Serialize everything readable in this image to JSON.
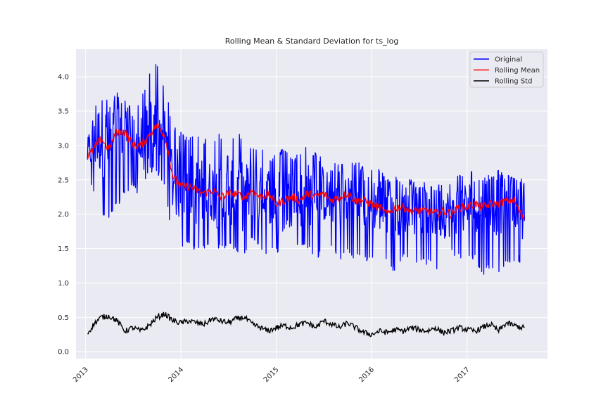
{
  "chart_data": {
    "type": "line",
    "title": "Rolling Mean & Standard Deviation for ts_log",
    "xlabel": "",
    "ylabel": "",
    "x_range": [
      "2012-11-25",
      "2017-11-05"
    ],
    "ylim": [
      -0.1,
      4.4
    ],
    "y_ticks": [
      0.0,
      0.5,
      1.0,
      1.5,
      2.0,
      2.5,
      3.0,
      3.5,
      4.0
    ],
    "y_tick_labels": [
      "0.0",
      "0.5",
      "1.0",
      "1.5",
      "2.0",
      "2.5",
      "3.0",
      "3.5",
      "4.0"
    ],
    "x_ticks": [
      "2013-01-01",
      "2014-01-01",
      "2015-01-01",
      "2016-01-01",
      "2017-01-01"
    ],
    "x_tick_labels": [
      "2013",
      "2014",
      "2015",
      "2016",
      "2017"
    ],
    "grid": true,
    "legend_position": "top-right",
    "background_color": "#eaeaf2",
    "series": [
      {
        "name": "Original",
        "color": "#0000ff",
        "x": [
          "2013-01-01",
          "2013-02-01",
          "2013-03-01",
          "2013-04-01",
          "2013-05-01",
          "2013-06-01",
          "2013-07-01",
          "2013-08-01",
          "2013-09-01",
          "2013-10-01",
          "2013-11-01",
          "2013-12-01",
          "2014-01-01",
          "2014-02-01",
          "2014-03-01",
          "2014-04-01",
          "2014-05-01",
          "2014-06-01",
          "2014-07-01",
          "2014-08-01",
          "2014-09-01",
          "2014-10-01",
          "2014-11-01",
          "2014-12-01",
          "2015-01-01",
          "2015-02-01",
          "2015-03-01",
          "2015-04-01",
          "2015-05-01",
          "2015-06-01",
          "2015-07-01",
          "2015-08-01",
          "2015-09-01",
          "2015-10-01",
          "2015-11-01",
          "2015-12-01",
          "2016-01-01",
          "2016-02-01",
          "2016-03-01",
          "2016-04-01",
          "2016-05-01",
          "2016-06-01",
          "2016-07-01",
          "2016-08-01",
          "2016-09-01",
          "2016-10-01",
          "2016-11-01",
          "2016-12-01",
          "2017-01-01",
          "2017-02-01",
          "2017-03-01",
          "2017-04-01",
          "2017-05-01",
          "2017-06-01",
          "2017-07-01",
          "2017-08-01"
        ],
        "mean": [
          2.85,
          3.0,
          3.15,
          3.0,
          3.2,
          3.25,
          3.05,
          3.0,
          3.2,
          3.3,
          3.1,
          2.5,
          2.4,
          2.45,
          2.35,
          2.3,
          2.35,
          2.25,
          2.3,
          2.3,
          2.25,
          2.35,
          2.25,
          2.3,
          2.2,
          2.2,
          2.25,
          2.2,
          2.3,
          2.25,
          2.3,
          2.2,
          2.25,
          2.3,
          2.2,
          2.2,
          2.15,
          2.15,
          2.05,
          2.1,
          2.1,
          2.05,
          2.05,
          2.05,
          2.0,
          2.05,
          2.0,
          2.1,
          2.1,
          2.15,
          2.1,
          2.15,
          2.15,
          2.2,
          2.2,
          2.0
        ],
        "high": [
          3.1,
          3.45,
          4.0,
          3.6,
          3.8,
          3.7,
          3.5,
          3.7,
          4.1,
          4.2,
          3.9,
          3.3,
          3.2,
          3.1,
          3.2,
          3.1,
          3.05,
          3.2,
          2.9,
          3.25,
          3.1,
          3.0,
          3.0,
          2.8,
          2.9,
          3.0,
          2.8,
          2.9,
          3.0,
          2.9,
          2.8,
          2.7,
          2.8,
          2.75,
          2.8,
          2.7,
          2.65,
          2.7,
          2.5,
          2.6,
          2.55,
          2.5,
          2.4,
          2.5,
          2.4,
          2.5,
          2.5,
          2.6,
          2.6,
          2.65,
          2.5,
          2.6,
          2.65,
          2.6,
          2.6,
          2.5
        ],
        "low": [
          2.5,
          2.3,
          2.0,
          1.9,
          2.1,
          2.3,
          2.4,
          2.2,
          2.6,
          2.6,
          2.4,
          1.55,
          1.5,
          1.55,
          1.45,
          1.5,
          1.55,
          1.45,
          1.5,
          1.45,
          1.4,
          1.6,
          1.5,
          1.4,
          1.45,
          1.25,
          1.4,
          1.5,
          1.5,
          1.35,
          1.4,
          1.45,
          1.3,
          1.4,
          1.35,
          1.3,
          1.3,
          1.3,
          1.25,
          1.15,
          1.35,
          1.3,
          1.3,
          1.25,
          1.2,
          1.15,
          1.4,
          1.35,
          1.3,
          1.35,
          1.05,
          1.25,
          1.05,
          1.3,
          1.3,
          1.3
        ]
      },
      {
        "name": "Rolling Mean",
        "color": "#ff0000",
        "x": [
          "2013-01-01",
          "2013-02-01",
          "2013-03-01",
          "2013-04-01",
          "2013-05-01",
          "2013-06-01",
          "2013-07-01",
          "2013-08-01",
          "2013-09-01",
          "2013-10-01",
          "2013-11-01",
          "2013-12-01",
          "2014-01-01",
          "2014-02-01",
          "2014-03-01",
          "2014-04-01",
          "2014-05-01",
          "2014-06-01",
          "2014-07-01",
          "2014-08-01",
          "2014-09-01",
          "2014-10-01",
          "2014-11-01",
          "2014-12-01",
          "2015-01-01",
          "2015-02-01",
          "2015-03-01",
          "2015-04-01",
          "2015-05-01",
          "2015-06-01",
          "2015-07-01",
          "2015-08-01",
          "2015-09-01",
          "2015-10-01",
          "2015-11-01",
          "2015-12-01",
          "2016-01-01",
          "2016-02-01",
          "2016-03-01",
          "2016-04-01",
          "2016-05-01",
          "2016-06-01",
          "2016-07-01",
          "2016-08-01",
          "2016-09-01",
          "2016-10-01",
          "2016-11-01",
          "2016-12-01",
          "2017-01-01",
          "2017-02-01",
          "2017-03-01",
          "2017-04-01",
          "2017-05-01",
          "2017-06-01",
          "2017-07-01",
          "2017-08-01"
        ],
        "y": [
          2.8,
          2.95,
          3.1,
          2.95,
          3.2,
          3.2,
          3.0,
          3.0,
          3.15,
          3.3,
          3.15,
          2.55,
          2.4,
          2.4,
          2.35,
          2.3,
          2.35,
          2.25,
          2.3,
          2.3,
          2.25,
          2.35,
          2.25,
          2.3,
          2.15,
          2.2,
          2.25,
          2.2,
          2.3,
          2.25,
          2.3,
          2.2,
          2.25,
          2.3,
          2.2,
          2.2,
          2.15,
          2.1,
          2.0,
          2.1,
          2.1,
          2.05,
          2.05,
          2.05,
          2.0,
          2.05,
          2.0,
          2.1,
          2.1,
          2.15,
          2.1,
          2.15,
          2.15,
          2.2,
          2.2,
          1.95
        ]
      },
      {
        "name": "Rolling Std",
        "color": "#000000",
        "x": [
          "2013-01-01",
          "2013-02-01",
          "2013-03-01",
          "2013-04-01",
          "2013-05-01",
          "2013-06-01",
          "2013-07-01",
          "2013-08-01",
          "2013-09-01",
          "2013-10-01",
          "2013-11-01",
          "2013-12-01",
          "2014-01-01",
          "2014-02-01",
          "2014-03-01",
          "2014-04-01",
          "2014-05-01",
          "2014-06-01",
          "2014-07-01",
          "2014-08-01",
          "2014-09-01",
          "2014-10-01",
          "2014-11-01",
          "2014-12-01",
          "2015-01-01",
          "2015-02-01",
          "2015-03-01",
          "2015-04-01",
          "2015-05-01",
          "2015-06-01",
          "2015-07-01",
          "2015-08-01",
          "2015-09-01",
          "2015-10-01",
          "2015-11-01",
          "2015-12-01",
          "2016-01-01",
          "2016-02-01",
          "2016-03-01",
          "2016-04-01",
          "2016-05-01",
          "2016-06-01",
          "2016-07-01",
          "2016-08-01",
          "2016-09-01",
          "2016-10-01",
          "2016-11-01",
          "2016-12-01",
          "2017-01-01",
          "2017-02-01",
          "2017-03-01",
          "2017-04-01",
          "2017-05-01",
          "2017-06-01",
          "2017-07-01",
          "2017-08-01"
        ],
        "y": [
          0.22,
          0.4,
          0.5,
          0.52,
          0.45,
          0.3,
          0.35,
          0.3,
          0.38,
          0.5,
          0.55,
          0.45,
          0.42,
          0.45,
          0.42,
          0.4,
          0.48,
          0.45,
          0.42,
          0.48,
          0.5,
          0.4,
          0.35,
          0.3,
          0.35,
          0.38,
          0.35,
          0.4,
          0.42,
          0.35,
          0.45,
          0.4,
          0.35,
          0.42,
          0.35,
          0.28,
          0.25,
          0.3,
          0.28,
          0.32,
          0.3,
          0.35,
          0.32,
          0.3,
          0.35,
          0.28,
          0.3,
          0.35,
          0.32,
          0.3,
          0.35,
          0.4,
          0.3,
          0.42,
          0.38,
          0.35
        ]
      }
    ]
  }
}
